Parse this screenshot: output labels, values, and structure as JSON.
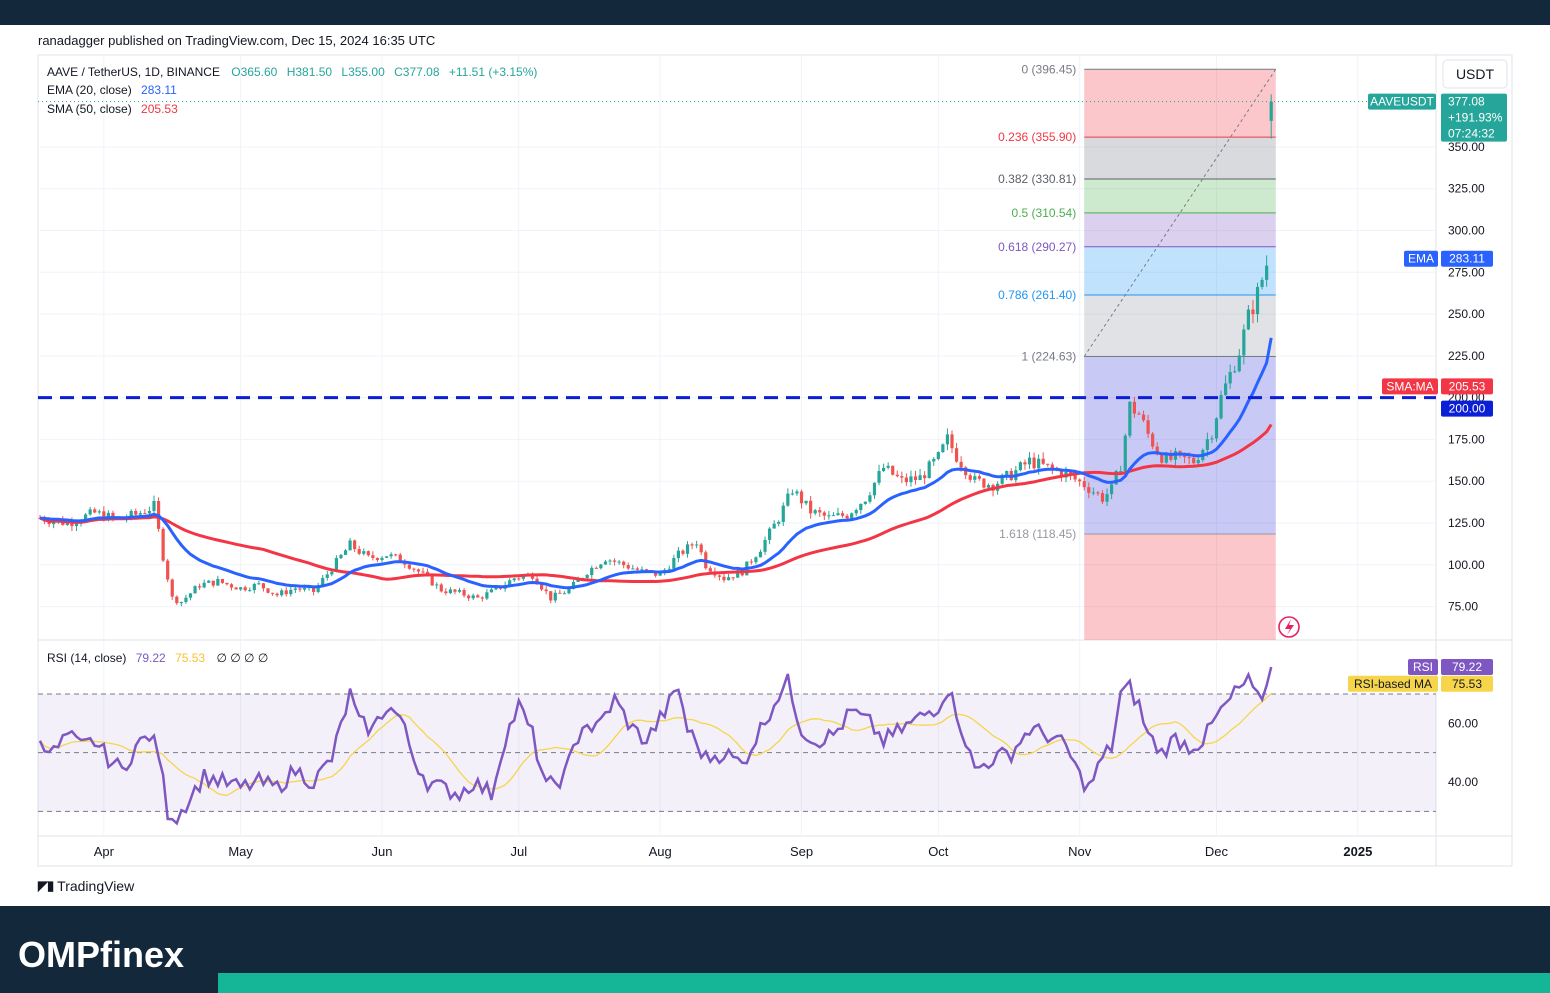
{
  "publisher_line": "ranadagger published on TradingView.com, Dec 15, 2024 16:35 UTC",
  "footer_logo": "TradingView",
  "brand": "OMPfinex",
  "currency_button": "USDT",
  "legend": {
    "symbol": "AAVE / TetherUS, 1D, BINANCE",
    "open": "O365.60",
    "high": "H381.50",
    "low": "L355.00",
    "close": "C377.08",
    "change": "+11.51 (+3.15%)",
    "ema_label": "EMA (20, close)",
    "ema_value": "283.11",
    "sma_label": "SMA (50, close)",
    "sma_value": "205.53",
    "rsi_label": "RSI (14, close)",
    "rsi_value": "79.22",
    "rsi_ma_value": "75.53",
    "rsi_extra": "∅ ∅ ∅ ∅"
  },
  "price_tags": {
    "symbol_tag": "AAVEUSDT",
    "price": "377.08",
    "pct": "+191.93%",
    "timer": "07:24:32",
    "ema_tag": "EMA",
    "ema_value": "283.11",
    "sma_tag": "SMA:MA",
    "sma_value": "205.53",
    "level_value": "200.00",
    "rsi_tag": "RSI",
    "rsi_value": "79.22",
    "rsi_ma_tag": "RSI-based MA",
    "rsi_ma_value": "75.53"
  },
  "colors": {
    "up": "#26a69a",
    "down": "#ef5350",
    "ema": "#2962ff",
    "sma": "#f23645",
    "rsi": "#7e57c2",
    "rsi_ma": "#f7d54a",
    "level_line": "#0b1fd6"
  },
  "chart_data": {
    "type": "candlestick",
    "price_axis": {
      "ylim": [
        55,
        405
      ],
      "ticks": [
        "75.00",
        "100.00",
        "125.00",
        "150.00",
        "175.00",
        "200.00",
        "225.00",
        "250.00",
        "275.00",
        "300.00",
        "325.00",
        "350.00"
      ]
    },
    "time_axis": {
      "labels": [
        "Apr",
        "May",
        "Jun",
        "Jul",
        "Aug",
        "Sep",
        "Oct",
        "Nov",
        "Dec",
        "2025"
      ],
      "label_days": [
        14,
        44,
        75,
        105,
        136,
        167,
        197,
        228,
        258,
        289
      ],
      "start": "2024-03-19",
      "last_day": 270
    },
    "price_anchors": [
      [
        0,
        128
      ],
      [
        6,
        125
      ],
      [
        12,
        131
      ],
      [
        17,
        127
      ],
      [
        21,
        130
      ],
      [
        25,
        135
      ],
      [
        27,
        105
      ],
      [
        29,
        80
      ],
      [
        31,
        78
      ],
      [
        35,
        88
      ],
      [
        39,
        90
      ],
      [
        44,
        86
      ],
      [
        48,
        88
      ],
      [
        52,
        82
      ],
      [
        56,
        86
      ],
      [
        60,
        84
      ],
      [
        64,
        98
      ],
      [
        68,
        112
      ],
      [
        72,
        104
      ],
      [
        76,
        106
      ],
      [
        80,
        102
      ],
      [
        84,
        94
      ],
      [
        88,
        85
      ],
      [
        92,
        83
      ],
      [
        96,
        80
      ],
      [
        100,
        85
      ],
      [
        104,
        92
      ],
      [
        108,
        94
      ],
      [
        112,
        80
      ],
      [
        116,
        85
      ],
      [
        120,
        96
      ],
      [
        124,
        104
      ],
      [
        128,
        100
      ],
      [
        132,
        96
      ],
      [
        136,
        94
      ],
      [
        140,
        106
      ],
      [
        144,
        114
      ],
      [
        146,
        100
      ],
      [
        150,
        92
      ],
      [
        154,
        96
      ],
      [
        158,
        110
      ],
      [
        162,
        128
      ],
      [
        165,
        145
      ],
      [
        169,
        132
      ],
      [
        173,
        128
      ],
      [
        177,
        130
      ],
      [
        181,
        140
      ],
      [
        185,
        158
      ],
      [
        189,
        150
      ],
      [
        193,
        152
      ],
      [
        197,
        164
      ],
      [
        199,
        175
      ],
      [
        201,
        165
      ],
      [
        205,
        150
      ],
      [
        209,
        148
      ],
      [
        213,
        154
      ],
      [
        217,
        162
      ],
      [
        221,
        158
      ],
      [
        225,
        154
      ],
      [
        229,
        148
      ],
      [
        233,
        140
      ],
      [
        235,
        145
      ],
      [
        237,
        160
      ],
      [
        239,
        195
      ],
      [
        241,
        190
      ],
      [
        243,
        178
      ],
      [
        245,
        168
      ],
      [
        247,
        162
      ],
      [
        249,
        164
      ],
      [
        253,
        162
      ],
      [
        255,
        170
      ],
      [
        257,
        180
      ],
      [
        259,
        200
      ],
      [
        261,
        214
      ],
      [
        263,
        228
      ],
      [
        265,
        248
      ],
      [
        267,
        262
      ],
      [
        269,
        280
      ],
      [
        271,
        265
      ],
      [
        273,
        300
      ],
      [
        275,
        350
      ],
      [
        277,
        375
      ],
      [
        279,
        368
      ],
      [
        280,
        377.08
      ]
    ],
    "candle_noise_seed": 7,
    "ema20": {
      "name": "EMA (20, close)",
      "last": 283.11
    },
    "sma50": {
      "name": "SMA (50, close)",
      "last": 205.53
    },
    "horizontal_level": 200.0,
    "fibonacci": {
      "from_day": 229,
      "to_day": 271,
      "levels": [
        {
          "ratio": "0",
          "value": 396.45,
          "label": "0 (396.45)",
          "color": "#787b86"
        },
        {
          "ratio": "0.236",
          "value": 355.9,
          "label": "0.236 (355.90)",
          "color": "#f23645"
        },
        {
          "ratio": "0.382",
          "value": 330.81,
          "label": "0.382 (330.81)",
          "color": "#5d606b"
        },
        {
          "ratio": "0.5",
          "value": 310.54,
          "label": "0.5 (310.54)",
          "color": "#4caf50"
        },
        {
          "ratio": "0.618",
          "value": 290.27,
          "label": "0.618 (290.27)",
          "color": "#7e57c2"
        },
        {
          "ratio": "0.786",
          "value": 261.4,
          "label": "0.786 (261.40)",
          "color": "#2196f3"
        },
        {
          "ratio": "1",
          "value": 224.63,
          "label": "1 (224.63)",
          "color": "#787b86"
        },
        {
          "ratio": "1.618",
          "value": 118.45,
          "label": "1.618 (118.45)",
          "color": "#9598a1"
        }
      ],
      "bands": [
        {
          "from": 396.45,
          "to": 355.9,
          "color": "#f23645"
        },
        {
          "from": 355.9,
          "to": 330.81,
          "color": "#787b86"
        },
        {
          "from": 330.81,
          "to": 310.54,
          "color": "#4caf50"
        },
        {
          "from": 310.54,
          "to": 290.27,
          "color": "#7e57c2"
        },
        {
          "from": 290.27,
          "to": 261.4,
          "color": "#2196f3"
        },
        {
          "from": 261.4,
          "to": 224.63,
          "color": "#9598a1"
        },
        {
          "from": 224.63,
          "to": 118.45,
          "color": "#3d3de0"
        },
        {
          "from": 118.45,
          "to": 55,
          "color": "#f23645"
        }
      ]
    },
    "rsi": {
      "ylim": [
        25,
        85
      ],
      "ticks": [
        "40.00",
        "60.00"
      ],
      "upper_band": 70,
      "mid": 50,
      "lower_band": 30,
      "anchors": [
        [
          0,
          55
        ],
        [
          3,
          50
        ],
        [
          6,
          56
        ],
        [
          9,
          52
        ],
        [
          12,
          54
        ],
        [
          15,
          48
        ],
        [
          18,
          44
        ],
        [
          21,
          52
        ],
        [
          24,
          56
        ],
        [
          26,
          50
        ],
        [
          28,
          30
        ],
        [
          30,
          28
        ],
        [
          33,
          35
        ],
        [
          36,
          42
        ],
        [
          40,
          40
        ],
        [
          44,
          38
        ],
        [
          48,
          40
        ],
        [
          52,
          38
        ],
        [
          56,
          44
        ],
        [
          60,
          40
        ],
        [
          64,
          48
        ],
        [
          68,
          70
        ],
        [
          70,
          60
        ],
        [
          73,
          58
        ],
        [
          76,
          66
        ],
        [
          79,
          62
        ],
        [
          82,
          48
        ],
        [
          85,
          40
        ],
        [
          88,
          38
        ],
        [
          92,
          36
        ],
        [
          95,
          40
        ],
        [
          99,
          36
        ],
        [
          102,
          55
        ],
        [
          105,
          66
        ],
        [
          108,
          56
        ],
        [
          111,
          38
        ],
        [
          115,
          42
        ],
        [
          119,
          60
        ],
        [
          122,
          58
        ],
        [
          126,
          68
        ],
        [
          130,
          58
        ],
        [
          133,
          54
        ],
        [
          137,
          64
        ],
        [
          140,
          72
        ],
        [
          142,
          58
        ],
        [
          146,
          48
        ],
        [
          150,
          50
        ],
        [
          154,
          46
        ],
        [
          158,
          58
        ],
        [
          162,
          70
        ],
        [
          164,
          74
        ],
        [
          167,
          58
        ],
        [
          170,
          54
        ],
        [
          174,
          56
        ],
        [
          178,
          64
        ],
        [
          182,
          60
        ],
        [
          185,
          54
        ],
        [
          189,
          58
        ],
        [
          193,
          62
        ],
        [
          197,
          66
        ],
        [
          199,
          72
        ],
        [
          201,
          64
        ],
        [
          205,
          44
        ],
        [
          209,
          48
        ],
        [
          213,
          50
        ],
        [
          217,
          58
        ],
        [
          221,
          56
        ],
        [
          225,
          52
        ],
        [
          228,
          42
        ],
        [
          230,
          38
        ],
        [
          233,
          48
        ],
        [
          235,
          52
        ],
        [
          237,
          70
        ],
        [
          239,
          72
        ],
        [
          241,
          66
        ],
        [
          243,
          56
        ],
        [
          246,
          50
        ],
        [
          249,
          55
        ],
        [
          252,
          52
        ],
        [
          255,
          54
        ],
        [
          258,
          62
        ],
        [
          261,
          68
        ],
        [
          263,
          72
        ],
        [
          265,
          74
        ],
        [
          267,
          68
        ],
        [
          269,
          72
        ],
        [
          271,
          66
        ],
        [
          273,
          76
        ],
        [
          275,
          84
        ],
        [
          277,
          80
        ],
        [
          279,
          78
        ],
        [
          280,
          79.22
        ]
      ]
    }
  }
}
